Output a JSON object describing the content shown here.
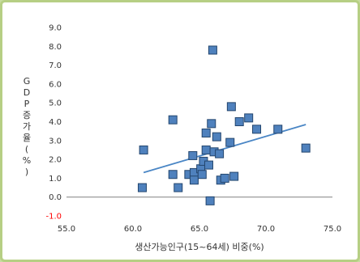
{
  "chart_data": {
    "type": "scatter",
    "xlabel": "생산가능인구(15~64세) 비중(%)",
    "ylabel_chars": [
      "G",
      "D",
      "P",
      "증",
      "가",
      "율",
      "(",
      "%",
      ")"
    ],
    "xlim": [
      55.0,
      75.0
    ],
    "ylim": [
      -1.0,
      9.0
    ],
    "x_ticks": [
      "55.0",
      "60.0",
      "65.0",
      "70.0",
      "75.0"
    ],
    "y_ticks": [
      "-1.0",
      "0.0",
      "1.0",
      "2.0",
      "3.0",
      "4.0",
      "5.0",
      "6.0",
      "7.0",
      "8.0",
      "9.0"
    ],
    "grid": false,
    "legend": "none",
    "trendline": {
      "type": "linear",
      "x": [
        60.8,
        73.0
      ],
      "y": [
        1.3,
        3.85
      ]
    },
    "series": [
      {
        "points": [
          {
            "x": 60.8,
            "y": 2.5
          },
          {
            "x": 60.7,
            "y": 0.5
          },
          {
            "x": 63.0,
            "y": 4.1
          },
          {
            "x": 63.0,
            "y": 1.2
          },
          {
            "x": 63.4,
            "y": 0.5
          },
          {
            "x": 64.2,
            "y": 1.2
          },
          {
            "x": 64.5,
            "y": 2.2
          },
          {
            "x": 64.6,
            "y": 1.3
          },
          {
            "x": 64.6,
            "y": 0.9
          },
          {
            "x": 65.1,
            "y": 1.5
          },
          {
            "x": 65.2,
            "y": 1.2
          },
          {
            "x": 65.3,
            "y": 1.9
          },
          {
            "x": 65.5,
            "y": 2.5
          },
          {
            "x": 65.5,
            "y": 3.4
          },
          {
            "x": 65.7,
            "y": 1.7
          },
          {
            "x": 65.8,
            "y": -0.2
          },
          {
            "x": 65.9,
            "y": 3.9
          },
          {
            "x": 66.0,
            "y": 7.8
          },
          {
            "x": 66.1,
            "y": 2.4
          },
          {
            "x": 66.3,
            "y": 3.2
          },
          {
            "x": 66.5,
            "y": 2.3
          },
          {
            "x": 66.6,
            "y": 0.9
          },
          {
            "x": 66.9,
            "y": 1.0
          },
          {
            "x": 67.3,
            "y": 2.9
          },
          {
            "x": 67.4,
            "y": 4.8
          },
          {
            "x": 67.6,
            "y": 1.1
          },
          {
            "x": 68.0,
            "y": 4.0
          },
          {
            "x": 68.7,
            "y": 4.2
          },
          {
            "x": 69.3,
            "y": 3.6
          },
          {
            "x": 70.9,
            "y": 3.6
          },
          {
            "x": 73.0,
            "y": 2.6
          }
        ]
      }
    ]
  },
  "colors": {
    "marker_fill": "#4f81bd",
    "marker_stroke": "#24466e",
    "trendline": "#4a86c5",
    "axis": "#808080",
    "tick_text": "#333333",
    "negative_tick": "#ff0000"
  }
}
